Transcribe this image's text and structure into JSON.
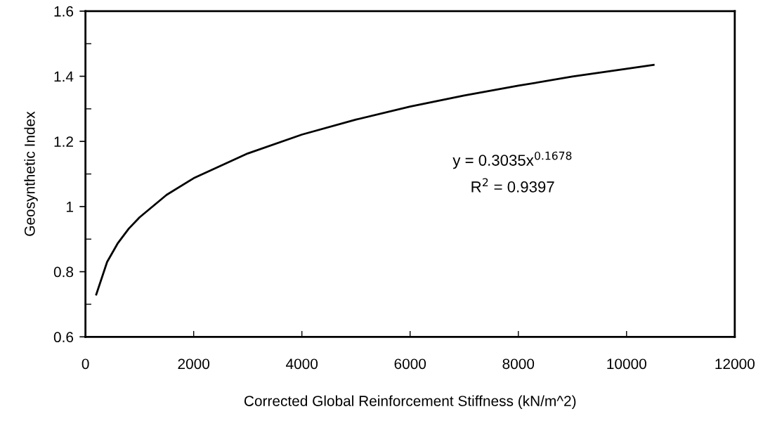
{
  "chart_data": {
    "type": "line",
    "xlabel": "Corrected Global Reinforcement Stiffness (kN/m^2)",
    "ylabel": "Geosynthetic Index",
    "x": [
      200,
      400,
      600,
      800,
      1000,
      1500,
      2000,
      3000,
      4000,
      5000,
      6000,
      7000,
      8000,
      9000,
      10000,
      10500
    ],
    "series": [
      {
        "color": "#000000",
        "values": [
          0.73,
          0.83,
          0.888,
          0.932,
          0.967,
          1.036,
          1.087,
          1.163,
          1.221,
          1.267,
          1.307,
          1.341,
          1.371,
          1.399,
          1.423,
          1.435
        ]
      }
    ],
    "xlim": [
      0,
      12000
    ],
    "xticks": [
      0,
      2000,
      4000,
      6000,
      8000,
      10000,
      12000
    ],
    "ylim": [
      0.6,
      1.6
    ],
    "yticks": [
      0.6,
      {
        "value": 0.7,
        "label": null
      },
      0.8,
      {
        "value": 0.9,
        "label": null
      },
      1,
      {
        "value": 1.1,
        "label": null
      },
      1.2,
      {
        "value": 1.3,
        "label": null
      },
      1.4,
      {
        "value": 1.5,
        "label": null
      },
      1.6
    ],
    "annotations": [
      "y = 0.3035x$^{0.1678}$",
      "R$^{2}$ = 0.9397"
    ],
    "grid": false,
    "legend": false,
    "marker": "none",
    "line_style": "solid"
  }
}
